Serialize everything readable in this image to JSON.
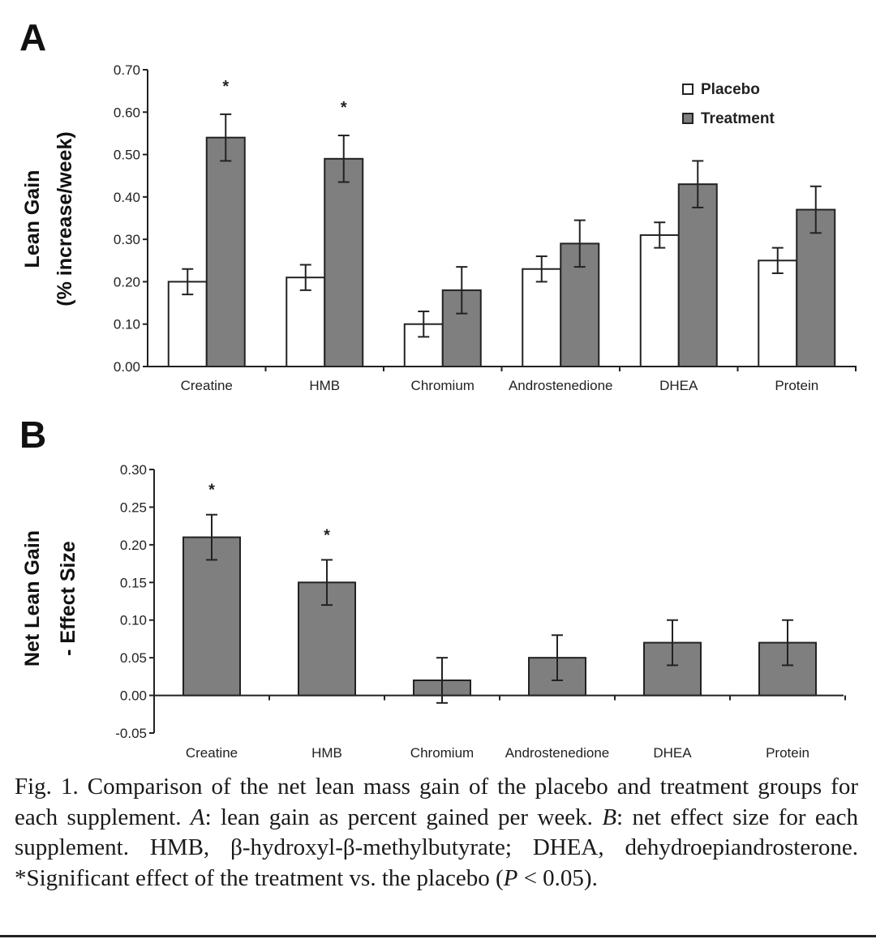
{
  "panels": {
    "a_letter": "A",
    "b_letter": "B"
  },
  "chart_data": [
    {
      "type": "bar",
      "panel": "A",
      "ylabel_line1": "Lean Gain",
      "ylabel_line2": "(% increase/week)",
      "xlabel": "",
      "categories": [
        "Creatine",
        "HMB",
        "Chromium",
        "Androstenedione",
        "DHEA",
        "Protein"
      ],
      "ylim": [
        0,
        0.7
      ],
      "yticks": [
        "0.00",
        "0.10",
        "0.20",
        "0.30",
        "0.40",
        "0.50",
        "0.60",
        "0.70"
      ],
      "series": [
        {
          "name": "Placebo",
          "color": "#ffffff",
          "values": [
            0.2,
            0.21,
            0.1,
            0.23,
            0.31,
            0.25
          ],
          "errors": [
            0.03,
            0.03,
            0.03,
            0.03,
            0.03,
            0.03
          ]
        },
        {
          "name": "Treatment",
          "color": "#7f7f7f",
          "values": [
            0.54,
            0.49,
            0.18,
            0.29,
            0.43,
            0.37
          ],
          "errors": [
            0.055,
            0.055,
            0.055,
            0.055,
            0.055,
            0.055
          ]
        }
      ],
      "significance": [
        {
          "category": "Creatine",
          "label": "*"
        },
        {
          "category": "HMB",
          "label": "*"
        }
      ],
      "legend_position": "top-right",
      "grid": false
    },
    {
      "type": "bar",
      "panel": "B",
      "ylabel_line1": "Net Lean Gain",
      "ylabel_line2": "- Effect Size",
      "xlabel": "",
      "categories": [
        "Creatine",
        "HMB",
        "Chromium",
        "Androstenedione",
        "DHEA",
        "Protein"
      ],
      "ylim": [
        -0.05,
        0.3
      ],
      "yticks": [
        "-0.05",
        "0.00",
        "0.05",
        "0.10",
        "0.15",
        "0.20",
        "0.25",
        "0.30"
      ],
      "series": [
        {
          "color": "#7f7f7f",
          "values": [
            0.21,
            0.15,
            0.02,
            0.05,
            0.07,
            0.07
          ],
          "errors": [
            0.03,
            0.03,
            0.03,
            0.03,
            0.03,
            0.03
          ]
        }
      ],
      "significance": [
        {
          "category": "Creatine",
          "label": "*"
        },
        {
          "category": "HMB",
          "label": "*"
        }
      ],
      "grid": false
    }
  ],
  "caption": {
    "fig_label": "Fig. 1.",
    "text_1": " Comparison of the net lean mass gain of the placebo and treatment groups for each supplement. ",
    "a_label": "A",
    "text_2": ": lean gain as percent gained per week. ",
    "b_label": "B",
    "text_3": ": net effect size for each supplement. HMB, β-hydroxyl-β-methylbutyrate; DHEA, dehydroepiandrosterone. *Significant effect of the treatment vs. the placebo (",
    "p_label": "P",
    "text_4": " < 0.05)."
  }
}
